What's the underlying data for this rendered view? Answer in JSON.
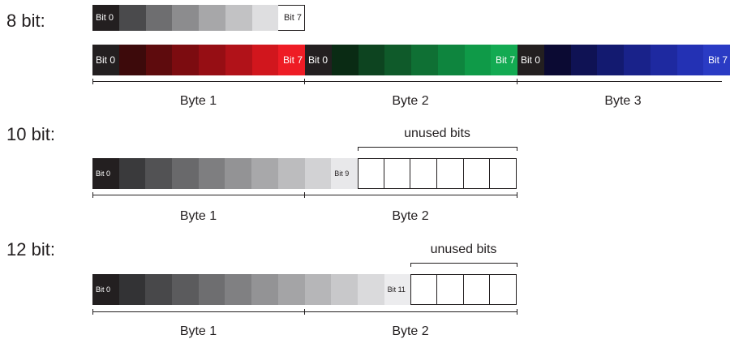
{
  "sections": [
    {
      "label": "8 bit:",
      "gray_row": {
        "colors": [
          "#231f20",
          "#4a4a4c",
          "#6e6e70",
          "#8c8c8e",
          "#a7a7a9",
          "#c2c2c4",
          "#dedee0",
          "#ffffff"
        ],
        "first_label": "Bit 0",
        "last_label": "Bit 7"
      },
      "color_rows": [
        {
          "colors": [
            "#231f20",
            "#3d0a0b",
            "#5e0b0d",
            "#7c0c10",
            "#960e14",
            "#b11219",
            "#d1161d",
            "#ee1c25"
          ],
          "first_label": "Bit 0",
          "last_label": "Bit 7"
        },
        {
          "colors": [
            "#231f20",
            "#0a2b14",
            "#0d4420",
            "#0f5a2a",
            "#0f7034",
            "#0e853e",
            "#0f9a48",
            "#13aa52"
          ],
          "first_label": "Bit 0",
          "last_label": "Bit 7"
        },
        {
          "colors": [
            "#231f20",
            "#0b0a33",
            "#0f1254",
            "#131a70",
            "#19228a",
            "#1e29a0",
            "#2331b4",
            "#2a3bc4"
          ],
          "first_label": "Bit 0",
          "last_label": "Bit 7"
        }
      ],
      "bytes": [
        "Byte 1",
        "Byte 2",
        "Byte 3"
      ]
    },
    {
      "label": "10 bit:",
      "gray_row": {
        "colors": [
          "#231f20",
          "#3a3a3c",
          "#525254",
          "#69696b",
          "#7e7e80",
          "#939395",
          "#a8a8aa",
          "#bcbcbe",
          "#d2d2d4",
          "#e8e8ea"
        ],
        "first_label": "Bit 0",
        "last_label": "Bit 9"
      },
      "unused_count": 6,
      "unused_label": "unused bits",
      "bytes": [
        "Byte 1",
        "Byte 2"
      ]
    },
    {
      "label": "12 bit:",
      "gray_row": {
        "colors": [
          "#231f20",
          "#333335",
          "#48484a",
          "#5b5b5d",
          "#6e6e70",
          "#808082",
          "#939395",
          "#a4a4a6",
          "#b6b6b8",
          "#c8c8ca",
          "#dadadc",
          "#ececee"
        ],
        "first_label": "Bit 0",
        "last_label": "Bit 11"
      },
      "unused_count": 4,
      "unused_label": "unused bits",
      "bytes": [
        "Byte 1",
        "Byte 2"
      ]
    }
  ]
}
